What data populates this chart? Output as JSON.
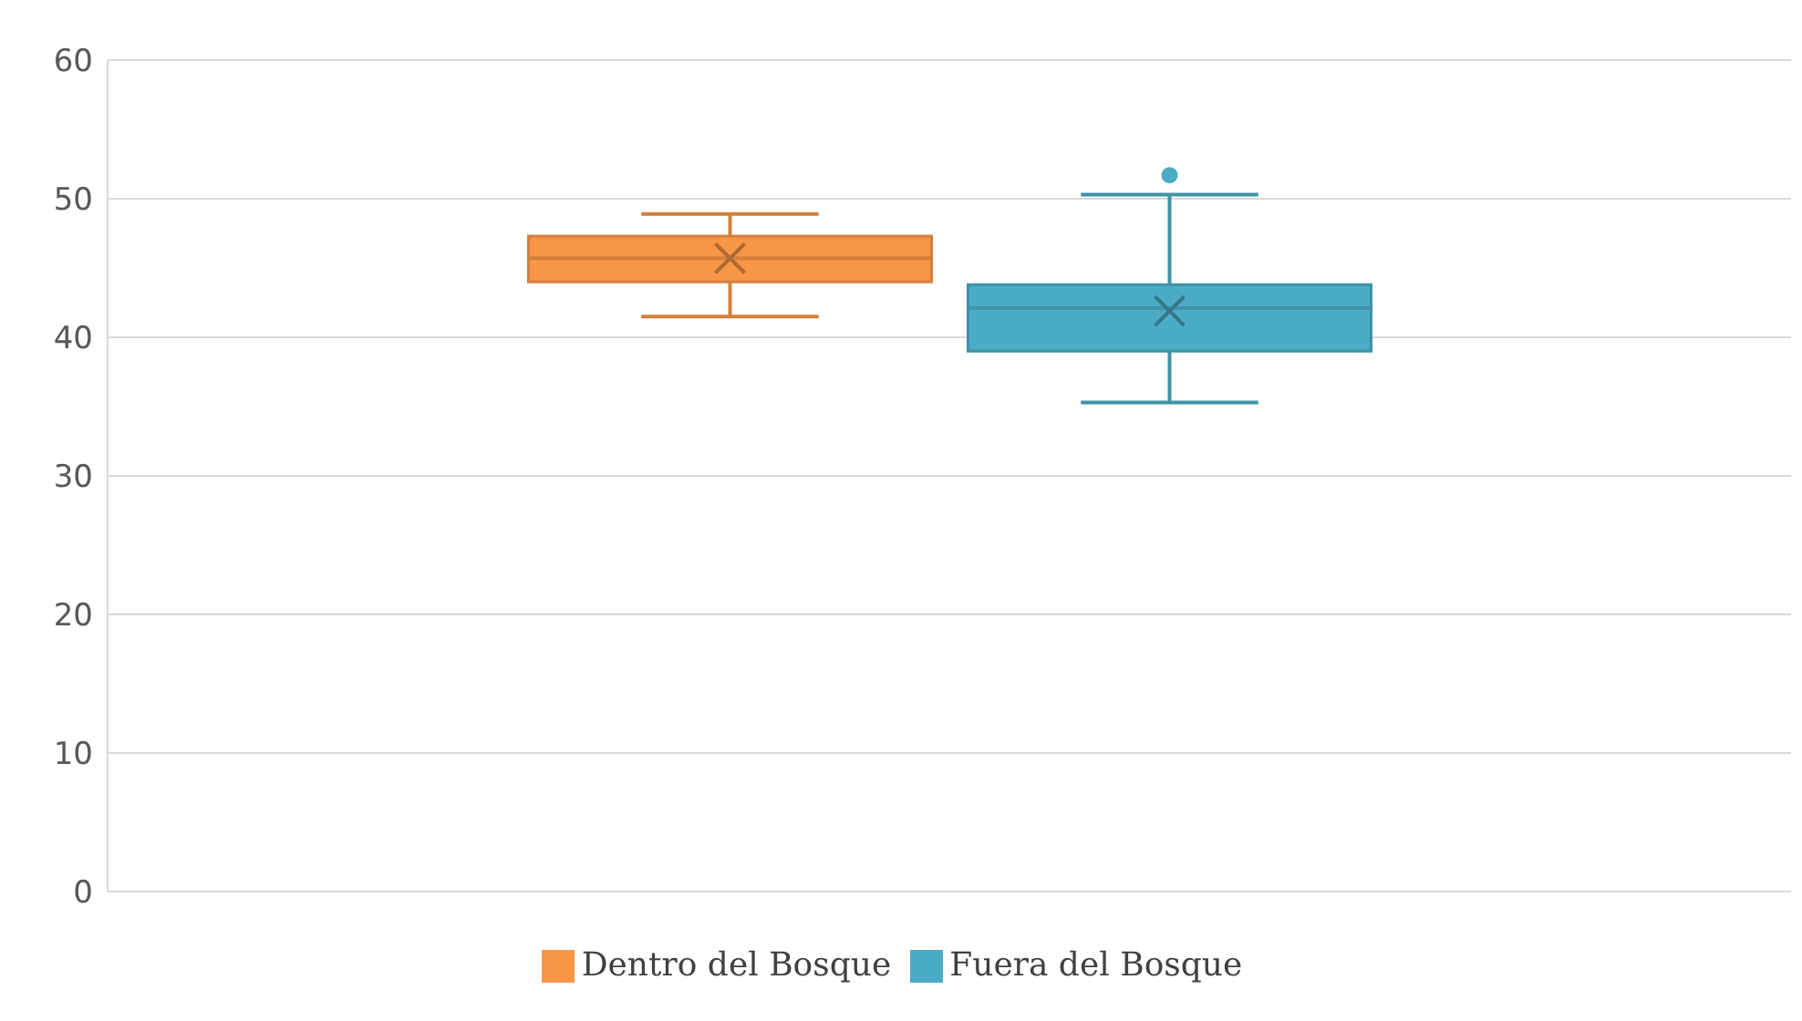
{
  "chart_data": {
    "type": "box",
    "categories": [
      null
    ],
    "series": [
      {
        "name": "Dentro del Bosque",
        "color": "#f79646",
        "boxes": [
          {
            "low": 41.5,
            "q1": 44.0,
            "median": 45.7,
            "q3": 47.3,
            "high": 48.9,
            "mean": 45.7
          }
        ]
      },
      {
        "name": "Fuera del Bosque",
        "color": "#4bacc6",
        "boxes": [
          {
            "low": 35.3,
            "q1": 39.0,
            "median": 42.1,
            "q3": 43.8,
            "high": 50.3,
            "mean": 41.9,
            "outliers": [
              51.7
            ]
          }
        ]
      }
    ],
    "ylim": [
      0,
      60
    ],
    "yticks": [
      0,
      10,
      20,
      30,
      40,
      50,
      60
    ],
    "grid": "y",
    "legend": "bottom",
    "tick_labels": "y"
  }
}
